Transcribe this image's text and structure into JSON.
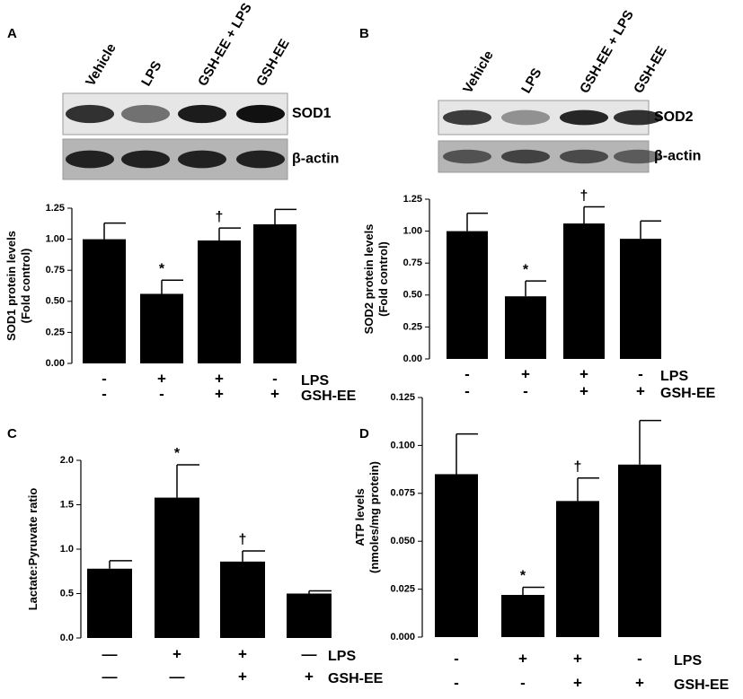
{
  "chart_data": [
    {
      "type": "bar",
      "panel": "A",
      "ylabel": [
        "SOD1 protein levels",
        "(Fold control)"
      ],
      "values": [
        1.0,
        0.56,
        0.99,
        1.12
      ],
      "errors": [
        0.13,
        0.11,
        0.1,
        0.12
      ],
      "bar_marks": [
        null,
        "*",
        "†",
        null
      ],
      "color": "#000000",
      "ylim": [
        0,
        1.25
      ],
      "yticks": [
        {
          "value": 0,
          "label": "0.00"
        },
        0.25,
        {
          "value": 0.5,
          "label": "0.50"
        },
        0.75,
        {
          "value": 1,
          "label": "1.00"
        },
        1.25
      ],
      "conditions": [
        {
          "name": "LPS",
          "signs": [
            "-",
            "+",
            "+",
            "-"
          ]
        },
        {
          "name": "GSH-EE",
          "signs": [
            "-",
            "-",
            "+",
            "+"
          ]
        }
      ],
      "blot": {
        "lanes": [
          "Vehicle",
          "LPS",
          "GSH-EE + LPS",
          "GSH-EE"
        ],
        "bands": [
          "SOD1",
          "β-actin"
        ]
      }
    },
    {
      "type": "bar",
      "panel": "B",
      "ylabel": [
        "SOD2 protein levels",
        "(Fold control)"
      ],
      "values": [
        1.0,
        0.49,
        1.06,
        0.94
      ],
      "errors": [
        0.14,
        0.12,
        0.13,
        0.14
      ],
      "bar_marks": [
        null,
        "*",
        "†",
        null
      ],
      "color": "#000000",
      "ylim": [
        0,
        1.25
      ],
      "yticks": [
        {
          "value": 0,
          "label": "0.00"
        },
        0.25,
        {
          "value": 0.5,
          "label": "0.50"
        },
        0.75,
        {
          "value": 1,
          "label": "1.00"
        },
        1.25
      ],
      "conditions": [
        {
          "name": "LPS",
          "signs": [
            "-",
            "+",
            "+",
            "-"
          ]
        },
        {
          "name": "GSH-EE",
          "signs": [
            "-",
            "-",
            "+",
            "+"
          ]
        }
      ],
      "blot": {
        "lanes": [
          "Vehicle",
          "LPS",
          "GSH-EE + LPS",
          "GSH-EE"
        ],
        "bands": [
          "SOD2",
          "β-actin"
        ]
      }
    },
    {
      "type": "bar",
      "panel": "C",
      "ylabel": [
        "Lactate:Pyruvate ratio"
      ],
      "values": [
        0.78,
        1.58,
        0.86,
        0.5
      ],
      "errors": [
        0.09,
        0.37,
        0.12,
        0.03
      ],
      "bar_marks": [
        null,
        "*",
        "†",
        null
      ],
      "color": "#000000",
      "ylim": [
        0,
        2.0
      ],
      "yticks": [
        {
          "value": 0,
          "label": "0.0"
        },
        0.5,
        {
          "value": 1,
          "label": "1.0"
        },
        1.5,
        {
          "value": 2,
          "label": "2.0"
        }
      ],
      "conditions": [
        {
          "name": "LPS",
          "signs": [
            "—",
            "+",
            "+",
            "—"
          ]
        },
        {
          "name": "GSH-EE",
          "signs": [
            "—",
            "—",
            "+",
            "+"
          ]
        }
      ]
    },
    {
      "type": "bar",
      "panel": "D",
      "ylabel": [
        "ATP levels",
        "(nmoles/mg protein)"
      ],
      "values": [
        0.085,
        0.022,
        0.071,
        0.09
      ],
      "errors": [
        0.021,
        0.004,
        0.012,
        0.023
      ],
      "bar_marks": [
        null,
        "*",
        "†",
        null
      ],
      "color": "#000000",
      "ylim": [
        0,
        0.125
      ],
      "yticks": [
        {
          "value": 0,
          "label": "0.000"
        },
        0.025,
        {
          "value": 0.05,
          "label": "0.050"
        },
        0.075,
        {
          "value": 0.1,
          "label": "0.100"
        },
        0.125
      ],
      "conditions": [
        {
          "name": "LPS",
          "signs": [
            "-",
            "+",
            "+",
            "-"
          ]
        },
        {
          "name": "GSH-EE",
          "signs": [
            "-",
            "-",
            "+",
            "+"
          ]
        }
      ]
    }
  ]
}
